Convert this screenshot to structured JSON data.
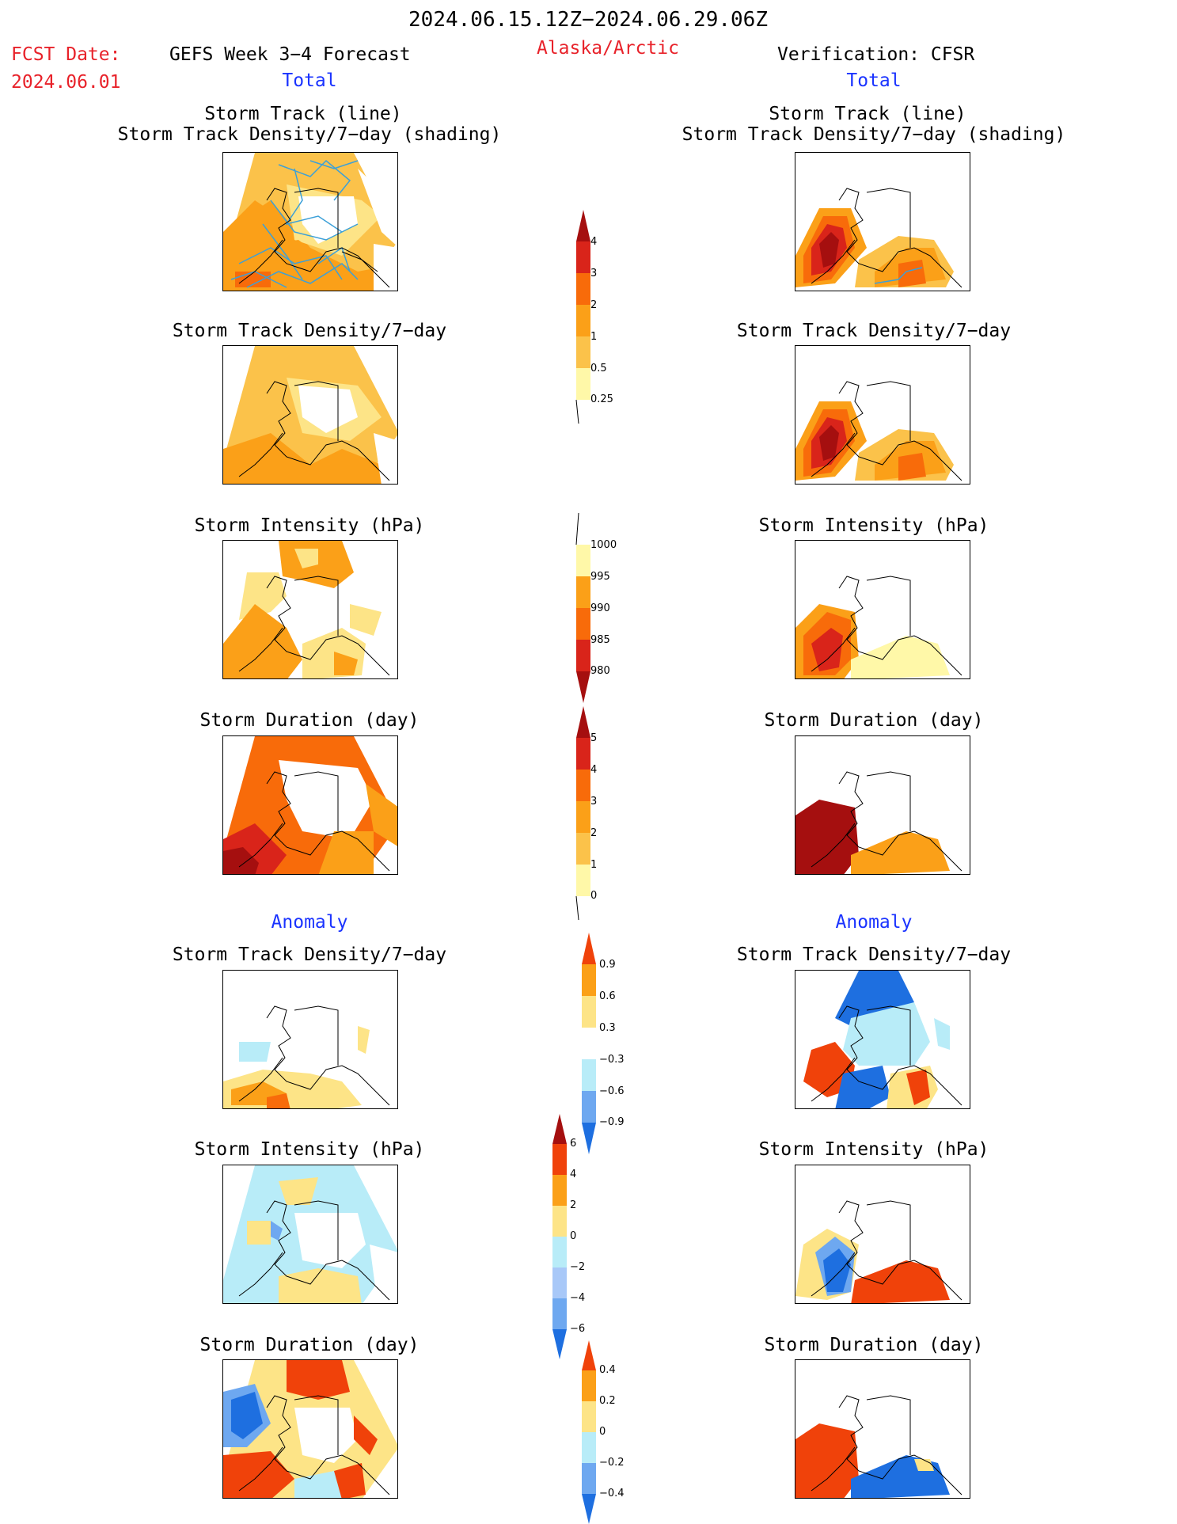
{
  "header": {
    "period": "2024.06.15.12Z−2024.06.29.06Z",
    "fcst_label": "FCST Date:",
    "fcst_date": "2024.06.01",
    "forecast_title": "GEFS Week 3−4 Forecast",
    "region": "Alaska/Arctic",
    "verification": "Verification: CFSR",
    "total_left": "Total",
    "total_right": "Total",
    "anomaly_left": "Anomaly",
    "anomaly_right": "Anomaly"
  },
  "panel_titles": {
    "track_line": "Storm Track (line)",
    "track_shading": "Storm Track Density/7−day (shading)",
    "density": "Storm Track Density/7−day",
    "intensity": "Storm Intensity (hPa)",
    "duration": "Storm Duration (day)"
  },
  "colorbars": {
    "density": {
      "labels": [
        "4",
        "3",
        "2",
        "1",
        "0.5",
        "0.25"
      ],
      "colors": [
        "#fff8a8",
        "#fde487",
        "#fbc24a",
        "#fba018",
        "#f86b0a",
        "#d9241a",
        "#a50f0f"
      ]
    },
    "intensity": {
      "labels": [
        "1000",
        "995",
        "990",
        "985",
        "980"
      ],
      "colors": [
        "#fff8a8",
        "#fba018",
        "#f86b0a",
        "#d9241a",
        "#a50f0f"
      ]
    },
    "duration": {
      "labels": [
        "5",
        "4",
        "3",
        "2",
        "1",
        "0"
      ],
      "colors": [
        "#fff8a8",
        "#fbc24a",
        "#fba018",
        "#f86b0a",
        "#d9241a",
        "#a50f0f"
      ]
    },
    "anom_density": {
      "labels": [
        "0.9",
        "0.6",
        "0.3",
        "−0.3",
        "−0.6",
        "−0.9"
      ]
    },
    "anom_intensity": {
      "labels": [
        "6",
        "4",
        "2",
        "0",
        "−2",
        "−4",
        "−6"
      ]
    },
    "anom_duration": {
      "labels": [
        "0.4",
        "0.2",
        "0",
        "−0.2",
        "−0.4"
      ]
    }
  }
}
